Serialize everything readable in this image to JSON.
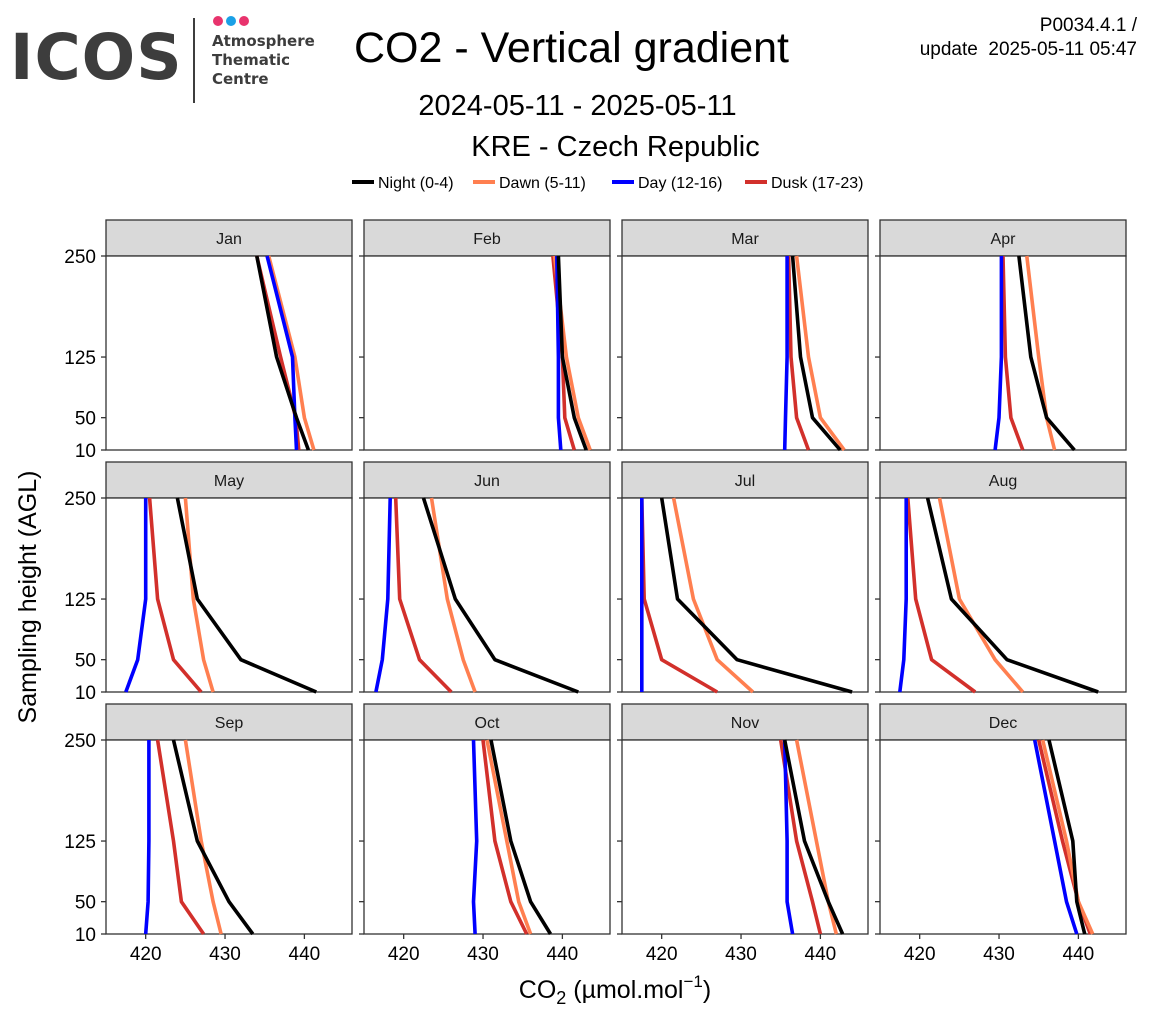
{
  "header": {
    "logo": {
      "word": "ICOS",
      "subtitle_lines": [
        "Atmosphere",
        "Thematic",
        "Centre"
      ],
      "dot_colors": [
        "#e8336d",
        "#1aa0e6",
        "#e8336d"
      ]
    },
    "title": "CO2 - Vertical gradient",
    "date_range": "2024-05-11 - 2025-05-11",
    "station": "KRE - Czech Republic",
    "version_line1": "P0034.4.1 /",
    "version_line2": "update  2025-05-11 05:47"
  },
  "chart_data": {
    "type": "line",
    "layout": "facet-grid 3x4",
    "xlabel": "CO2 (µmol.mol-1)",
    "ylabel": "Sampling height (AGL)",
    "xlim": [
      415,
      446
    ],
    "ylim": [
      10,
      250
    ],
    "x_ticks": [
      420,
      430,
      440
    ],
    "y_ticks": [
      10,
      50,
      125,
      250
    ],
    "heights": [
      10,
      50,
      125,
      250
    ],
    "legend_position": "top",
    "grid": false,
    "series": [
      {
        "key": "night",
        "name": "Night (0-4)",
        "color": "#000000"
      },
      {
        "key": "dawn",
        "name": "Dawn (5-11)",
        "color": "#ff7f50"
      },
      {
        "key": "day",
        "name": "Day (12-16)",
        "color": "#0000ff"
      },
      {
        "key": "dusk",
        "name": "Dusk (17-23)",
        "color": "#d2302b"
      }
    ],
    "panels": [
      {
        "month": "Jan",
        "night": [
          440.5,
          439.0,
          436.5,
          434.0
        ],
        "dawn": [
          441.2,
          440.0,
          438.8,
          435.5
        ],
        "day": [
          439.0,
          438.8,
          438.5,
          435.3
        ],
        "dusk": [
          439.3,
          438.9,
          437.0,
          434.0
        ]
      },
      {
        "month": "Feb",
        "night": [
          443.0,
          441.5,
          440.0,
          439.5
        ],
        "dawn": [
          443.5,
          442.0,
          440.5,
          439.0
        ],
        "day": [
          439.8,
          439.5,
          439.5,
          439.3
        ],
        "dusk": [
          441.5,
          440.3,
          440.0,
          438.8
        ]
      },
      {
        "month": "Mar",
        "night": [
          442.5,
          439.0,
          437.5,
          436.5
        ],
        "dawn": [
          443.0,
          440.0,
          438.5,
          437.0
        ],
        "day": [
          435.5,
          435.6,
          435.8,
          435.8
        ],
        "dusk": [
          438.5,
          437.0,
          436.3,
          436.0
        ]
      },
      {
        "month": "Apr",
        "night": [
          439.5,
          436.0,
          434.0,
          432.5
        ],
        "dawn": [
          437.0,
          436.0,
          435.0,
          433.5
        ],
        "day": [
          429.5,
          430.0,
          430.3,
          430.3
        ],
        "dusk": [
          433.0,
          431.5,
          430.8,
          430.5
        ]
      },
      {
        "month": "May",
        "night": [
          441.5,
          432.0,
          426.5,
          424.0
        ],
        "dawn": [
          428.5,
          427.3,
          426.0,
          425.0
        ],
        "day": [
          417.5,
          419.0,
          420.0,
          420.0
        ],
        "dusk": [
          427.0,
          423.5,
          421.5,
          420.5
        ]
      },
      {
        "month": "Jun",
        "night": [
          442.0,
          431.5,
          426.5,
          422.5
        ],
        "dawn": [
          429.0,
          427.5,
          425.5,
          423.5
        ],
        "day": [
          416.5,
          417.3,
          418.0,
          418.3
        ],
        "dusk": [
          426.0,
          422.0,
          419.5,
          419.0
        ]
      },
      {
        "month": "Jul",
        "night": [
          444.0,
          429.5,
          422.0,
          420.0
        ],
        "dawn": [
          431.5,
          427.0,
          424.0,
          421.5
        ],
        "day": [
          417.5,
          417.5,
          417.5,
          417.5
        ],
        "dusk": [
          427.0,
          420.0,
          417.8,
          417.5
        ]
      },
      {
        "month": "Aug",
        "night": [
          442.5,
          431.0,
          424.0,
          421.0
        ],
        "dawn": [
          433.0,
          429.5,
          425.0,
          422.5
        ],
        "day": [
          417.5,
          418.0,
          418.3,
          418.3
        ],
        "dusk": [
          427.0,
          421.5,
          419.5,
          418.5
        ]
      },
      {
        "month": "Sep",
        "night": [
          433.5,
          430.5,
          426.5,
          423.5
        ],
        "dawn": [
          429.5,
          428.5,
          427.0,
          425.0
        ],
        "day": [
          420.0,
          420.3,
          420.4,
          420.4
        ],
        "dusk": [
          427.3,
          424.5,
          423.5,
          421.5
        ]
      },
      {
        "month": "Oct",
        "night": [
          438.5,
          436.0,
          433.5,
          431.0
        ],
        "dawn": [
          436.0,
          434.5,
          433.0,
          430.5
        ],
        "day": [
          429.0,
          428.8,
          429.2,
          428.8
        ],
        "dusk": [
          435.5,
          433.5,
          431.5,
          430.0
        ]
      },
      {
        "month": "Nov",
        "night": [
          442.8,
          441.0,
          438.0,
          435.5
        ],
        "dawn": [
          442.0,
          441.0,
          439.5,
          437.0
        ],
        "day": [
          436.5,
          435.8,
          435.8,
          435.5
        ],
        "dusk": [
          440.0,
          439.0,
          437.0,
          435.0
        ]
      },
      {
        "month": "Dec",
        "night": [
          440.8,
          439.8,
          439.3,
          436.3
        ],
        "dawn": [
          441.8,
          440.0,
          438.5,
          435.5
        ],
        "day": [
          439.8,
          438.5,
          437.0,
          434.5
        ],
        "dusk": [
          441.5,
          440.0,
          438.0,
          435.0
        ]
      }
    ]
  }
}
